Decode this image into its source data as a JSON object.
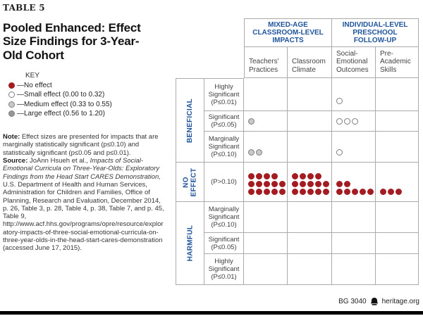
{
  "page": {
    "table_label": "TABLE 5",
    "title": "Pooled Enhanced: Effect Size Findings for 3-Year-Old Cohort"
  },
  "key": {
    "heading": "KEY",
    "items": [
      {
        "type": "none",
        "label": "—No effect"
      },
      {
        "type": "small",
        "label": "—Small effect (0.00 to 0.32)"
      },
      {
        "type": "medium",
        "label": "—Medium effect (0.33 to 0.55)"
      },
      {
        "type": "large",
        "label": "—Large effect (0.56 to 1.20)"
      }
    ]
  },
  "note": {
    "note_label": "Note:",
    "note_text": " Effect sizes are presented for impacts that are marginally statistically significant (p≤0.10) and statistically significant (p≤0.05 and p≤0.01).",
    "source_label": "Source:",
    "source_text_1": " JoAnn Hsueh et al., ",
    "source_italic": "Impacts of Social-Emotional Curricula on Three-Year-Olds: Exploratory Findings from the Head Start CARES Demonstration,",
    "source_text_2": " U.S. Department of Health and Human Services, Administration for Children and Families, Office of Planning, Research and Evaluation, December 2014, p. 26, Table 3, p. 28, Table 4, p. 38, Table 7, and p. 45, Table 9, http://www.acf.hhs.gov/programs/opre/resource/exploratory-impacts-of-three-social-emotional-curricula-on-three-year-olds-in-the-head-start-cares-demonstration (accessed June 17, 2015)."
  },
  "footer": {
    "doc_id": "BG 3040",
    "site": "heritage.org"
  },
  "colors": {
    "accent_blue": "#20549B",
    "no_effect_red": "#A21C21",
    "grid": "#ABABAB",
    "medium_fill": "#C9C9CB",
    "large_fill": "#97979A",
    "circle_stroke": "#7E7E81"
  },
  "chart_data": {
    "type": "table",
    "description": "Dot-matrix table; each dot is one measured impact classified by effect size and significance",
    "legend": [
      {
        "symbol": "none",
        "label": "No effect"
      },
      {
        "symbol": "small",
        "label": "Small effect (0.00 to 0.32)"
      },
      {
        "symbol": "medium",
        "label": "Medium effect (0.33 to 0.55)"
      },
      {
        "symbol": "large",
        "label": "Large effect (0.56 to 1.20)"
      }
    ],
    "column_groups": [
      {
        "label": "MIXED-AGE\nCLASSROOM-LEVEL\nIMPACTS",
        "span": 2
      },
      {
        "label": "INDIVIDUAL-LEVEL\nPRESCHOOL\nFOLLOW-UP",
        "span": 2
      }
    ],
    "columns": [
      "Teachers' Practices",
      "Classroom Climate",
      "Social-Emotional Outcomes",
      "Pre-Academic Skills"
    ],
    "row_groups": [
      {
        "label": "BENEFICIAL",
        "rows": [
          0,
          1,
          2
        ]
      },
      {
        "label": "NO EFFECT",
        "display": "NO\nEFFECT",
        "rows": [
          3
        ]
      },
      {
        "label": "HARMFUL",
        "rows": [
          4,
          5,
          6
        ]
      }
    ],
    "rows": [
      {
        "group": "BENEFICIAL",
        "label": "Highly Significant (P≤0.01)",
        "cells": [
          [],
          [],
          [
            {
              "type": "small",
              "count": 1
            }
          ],
          []
        ]
      },
      {
        "group": "BENEFICIAL",
        "label": "Significant (P≤0.05)",
        "cells": [
          [
            {
              "type": "medium",
              "count": 1
            }
          ],
          [],
          [
            {
              "type": "small",
              "count": 3
            }
          ],
          []
        ]
      },
      {
        "group": "BENEFICIAL",
        "label": "Marginally Significant (P≤0.10)",
        "cells": [
          [
            {
              "type": "medium",
              "count": 2
            }
          ],
          [],
          [
            {
              "type": "small",
              "count": 1
            }
          ],
          []
        ]
      },
      {
        "group": "NO EFFECT",
        "label": "(P>0.10)",
        "cells": [
          [
            {
              "type": "none",
              "count": 14
            }
          ],
          [
            {
              "type": "none",
              "count": 14
            }
          ],
          [
            {
              "type": "none",
              "count": 7
            }
          ],
          [
            {
              "type": "none",
              "count": 3
            }
          ]
        ]
      },
      {
        "group": "HARMFUL",
        "label": "Marginally Significant (P≤0.10)",
        "cells": [
          [],
          [],
          [],
          []
        ]
      },
      {
        "group": "HARMFUL",
        "label": "Significant (P≤0.05)",
        "cells": [
          [],
          [],
          [],
          []
        ]
      },
      {
        "group": "HARMFUL",
        "label": "Highly Significant (P≤0.01)",
        "cells": [
          [],
          [],
          [],
          []
        ]
      }
    ]
  }
}
